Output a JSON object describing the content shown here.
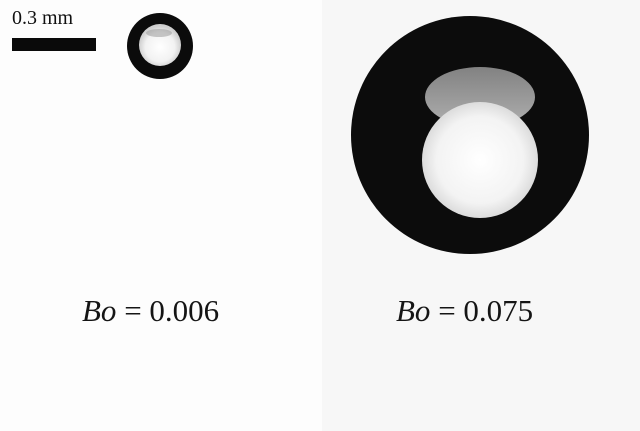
{
  "scale_bar": {
    "label": "0.3 mm"
  },
  "panels": [
    {
      "symbol": "Bo",
      "equals": " = ",
      "value": "0.006"
    },
    {
      "symbol": "Bo",
      "equals": " = ",
      "value": "0.075"
    }
  ],
  "colors": {
    "drop_edge": "#0a0a0a",
    "drop_core": "#f4f4f4",
    "background": "#ffffff"
  }
}
